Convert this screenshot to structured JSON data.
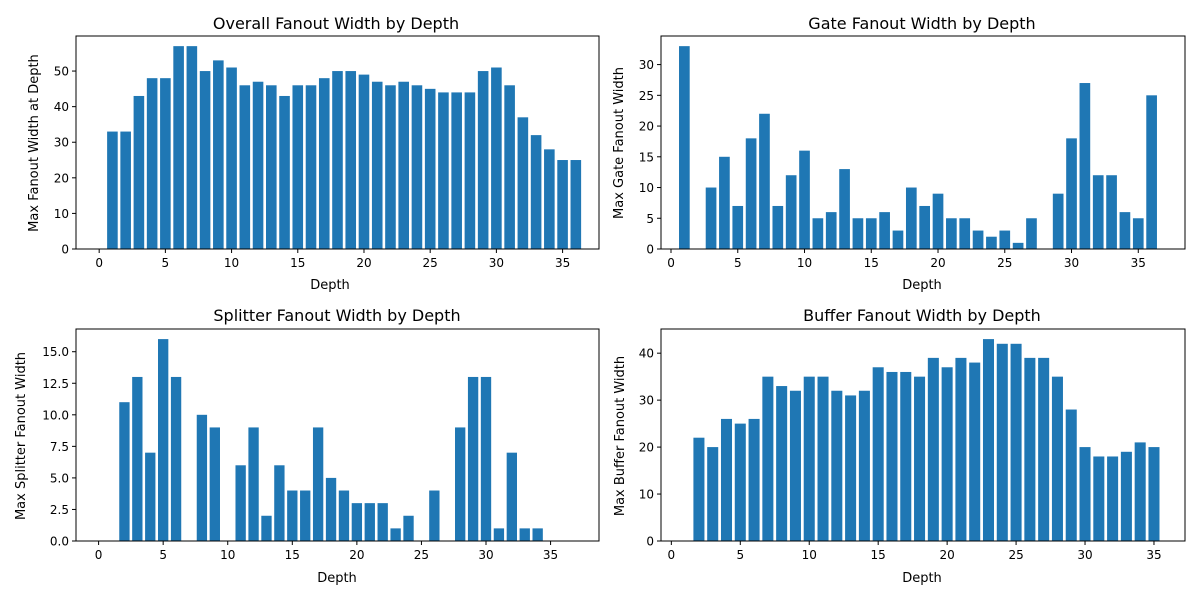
{
  "colors": {
    "bar": "#1f77b4",
    "axis": "#000000",
    "background": "#ffffff"
  },
  "chart_data": [
    {
      "type": "bar",
      "title": "Overall Fanout Width by Depth",
      "xlabel": "Depth",
      "ylabel": "Max Fanout Width at Depth",
      "x": [
        1,
        2,
        3,
        4,
        5,
        6,
        7,
        8,
        9,
        10,
        11,
        12,
        13,
        14,
        15,
        16,
        17,
        18,
        19,
        20,
        21,
        22,
        23,
        24,
        25,
        26,
        27,
        28,
        29,
        30,
        31,
        32,
        33,
        34,
        35,
        36
      ],
      "values": [
        33,
        33,
        43,
        48,
        48,
        57,
        57,
        50,
        53,
        51,
        46,
        47,
        46,
        43,
        46,
        46,
        48,
        50,
        50,
        49,
        47,
        46,
        47,
        46,
        45,
        44,
        44,
        44,
        50,
        51,
        46,
        37,
        32,
        28,
        25,
        25
      ],
      "xlim": [
        -1.75,
        37.75
      ],
      "ylim": [
        0,
        59.85
      ],
      "xticks": [
        0,
        5,
        10,
        15,
        20,
        25,
        30,
        35
      ],
      "yticks": [
        0,
        10,
        20,
        30,
        40,
        50
      ],
      "ytick_labels": [
        "0",
        "10",
        "20",
        "30",
        "40",
        "50"
      ],
      "grid": false,
      "legend": "none"
    },
    {
      "type": "bar",
      "title": "Gate Fanout Width by Depth",
      "xlabel": "Depth",
      "ylabel": "Max Gate Fanout Width",
      "x": [
        1,
        2,
        3,
        4,
        5,
        6,
        7,
        8,
        9,
        10,
        11,
        12,
        13,
        14,
        15,
        16,
        17,
        18,
        19,
        20,
        21,
        22,
        23,
        24,
        25,
        26,
        27,
        28,
        29,
        30,
        31,
        32,
        33,
        34,
        35,
        36
      ],
      "values": [
        33,
        0,
        10,
        15,
        7,
        18,
        22,
        7,
        12,
        16,
        5,
        6,
        13,
        5,
        5,
        6,
        3,
        10,
        7,
        9,
        5,
        5,
        3,
        2,
        3,
        1,
        5,
        0,
        9,
        18,
        27,
        12,
        12,
        6,
        5,
        25
      ],
      "xlim": [
        -0.75,
        38.5
      ],
      "ylim": [
        0,
        34.65
      ],
      "xticks": [
        0,
        5,
        10,
        15,
        20,
        25,
        30,
        35
      ],
      "yticks": [
        0,
        5,
        10,
        15,
        20,
        25,
        30
      ],
      "ytick_labels": [
        "0",
        "5",
        "10",
        "15",
        "20",
        "25",
        "30"
      ],
      "grid": false,
      "legend": "none"
    },
    {
      "type": "bar",
      "title": "Splitter Fanout Width by Depth",
      "xlabel": "Depth",
      "ylabel": "Max Splitter Fanout Width",
      "x": [
        1,
        2,
        3,
        4,
        5,
        6,
        7,
        8,
        9,
        10,
        11,
        12,
        13,
        14,
        15,
        16,
        17,
        18,
        19,
        20,
        21,
        22,
        23,
        24,
        25,
        26,
        27,
        28,
        29,
        30,
        31,
        32,
        33,
        34,
        35,
        36
      ],
      "values": [
        0,
        11,
        13,
        7,
        16,
        13,
        0,
        10,
        9,
        0,
        6,
        9,
        2,
        6,
        4,
        4,
        9,
        5,
        4,
        3,
        3,
        3,
        1,
        2,
        0,
        4,
        0,
        9,
        13,
        13,
        1,
        7,
        1,
        1,
        0,
        0
      ],
      "xlim": [
        -1.75,
        38.75
      ],
      "ylim": [
        0,
        16.8
      ],
      "xticks": [
        0,
        5,
        10,
        15,
        20,
        25,
        30,
        35
      ],
      "yticks": [
        0,
        2.5,
        5,
        7.5,
        10,
        12.5,
        15
      ],
      "ytick_labels": [
        "0.0",
        "2.5",
        "5.0",
        "7.5",
        "10.0",
        "12.5",
        "15.0"
      ],
      "grid": false,
      "legend": "none"
    },
    {
      "type": "bar",
      "title": "Buffer Fanout Width by Depth",
      "xlabel": "Depth",
      "ylabel": "Max Buffer Fanout Width",
      "x": [
        1,
        2,
        3,
        4,
        5,
        6,
        7,
        8,
        9,
        10,
        11,
        12,
        13,
        14,
        15,
        16,
        17,
        18,
        19,
        20,
        21,
        22,
        23,
        24,
        25,
        26,
        27,
        28,
        29,
        30,
        31,
        32,
        33,
        34,
        35
      ],
      "values": [
        0,
        22,
        20,
        26,
        25,
        26,
        35,
        33,
        32,
        35,
        35,
        32,
        31,
        32,
        37,
        36,
        36,
        35,
        39,
        37,
        39,
        38,
        43,
        42,
        42,
        39,
        39,
        35,
        28,
        20,
        18,
        18,
        19,
        21,
        20
      ],
      "xlim": [
        -0.75,
        37.25
      ],
      "ylim": [
        0,
        45.15
      ],
      "xticks": [
        0,
        5,
        10,
        15,
        20,
        25,
        30,
        35
      ],
      "yticks": [
        0,
        10,
        20,
        30,
        40
      ],
      "ytick_labels": [
        "0",
        "10",
        "20",
        "30",
        "40"
      ],
      "grid": false,
      "legend": "none"
    }
  ]
}
